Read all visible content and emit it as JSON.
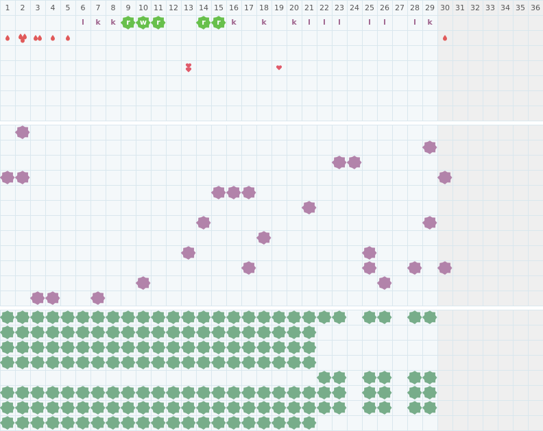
{
  "columns": [
    1,
    2,
    3,
    4,
    5,
    6,
    7,
    8,
    9,
    10,
    11,
    12,
    13,
    14,
    15,
    16,
    17,
    18,
    19,
    20,
    21,
    22,
    23,
    24,
    25,
    26,
    27,
    28,
    29,
    30,
    31,
    32,
    33,
    34,
    35,
    36
  ],
  "shaded_from": 30,
  "top": {
    "rows": [
      {
        "items": [
          {
            "col": 6,
            "text": "l"
          },
          {
            "col": 7,
            "text": "k"
          },
          {
            "col": 8,
            "text": "k"
          },
          {
            "col": 9,
            "text": "r",
            "badge": true
          },
          {
            "col": 10,
            "text": "w",
            "badge": true
          },
          {
            "col": 11,
            "text": "r",
            "badge": true
          },
          {
            "col": 14,
            "text": "r",
            "badge": true
          },
          {
            "col": 15,
            "text": "r",
            "badge": true
          },
          {
            "col": 16,
            "text": "k"
          },
          {
            "col": 18,
            "text": "k"
          },
          {
            "col": 20,
            "text": "k"
          },
          {
            "col": 21,
            "text": "l"
          },
          {
            "col": 22,
            "text": "l"
          },
          {
            "col": 23,
            "text": "l"
          },
          {
            "col": 25,
            "text": "l"
          },
          {
            "col": 26,
            "text": "l"
          },
          {
            "col": 28,
            "text": "l"
          },
          {
            "col": 29,
            "text": "k"
          }
        ]
      },
      {
        "items": [
          {
            "col": 1,
            "icon": "drop",
            "count": 1
          },
          {
            "col": 2,
            "icon": "drop",
            "count": 3
          },
          {
            "col": 3,
            "icon": "drop",
            "count": 2
          },
          {
            "col": 4,
            "icon": "drop",
            "count": 1
          },
          {
            "col": 5,
            "icon": "drop",
            "count": 1
          },
          {
            "col": 30,
            "icon": "drop",
            "count": 1
          }
        ]
      },
      {
        "items": []
      },
      {
        "items": [
          {
            "col": 13,
            "icon": "heart",
            "count": 2
          },
          {
            "col": 19,
            "icon": "heart",
            "count": 1
          }
        ]
      },
      {
        "items": []
      },
      {
        "items": []
      },
      {
        "items": []
      }
    ]
  },
  "middle": {
    "rows": [
      [
        2
      ],
      [
        29
      ],
      [
        23,
        24
      ],
      [
        1,
        2,
        30
      ],
      [
        15,
        16,
        17
      ],
      [
        21
      ],
      [
        14,
        29
      ],
      [
        18
      ],
      [
        13,
        25
      ],
      [
        17,
        25,
        28,
        30
      ],
      [
        10,
        26
      ],
      [
        3,
        4,
        7
      ]
    ]
  },
  "bottom": {
    "rows": [
      [
        {
          "from": 1,
          "to": 23
        },
        {
          "from": 25,
          "to": 26
        },
        {
          "from": 28,
          "to": 29
        }
      ],
      [
        {
          "from": 1,
          "to": 21
        }
      ],
      [
        {
          "from": 1,
          "to": 21
        }
      ],
      [
        {
          "from": 1,
          "to": 21
        }
      ],
      [
        {
          "from": 22,
          "to": 23
        },
        {
          "from": 25,
          "to": 26
        },
        {
          "from": 28,
          "to": 29
        }
      ],
      [
        {
          "from": 1,
          "to": 23
        },
        {
          "from": 25,
          "to": 26
        },
        {
          "from": 28,
          "to": 29
        }
      ],
      [
        {
          "from": 1,
          "to": 23
        },
        {
          "from": 25,
          "to": 26
        },
        {
          "from": 28,
          "to": 29
        }
      ],
      [
        {
          "from": 1,
          "to": 21
        }
      ]
    ]
  }
}
